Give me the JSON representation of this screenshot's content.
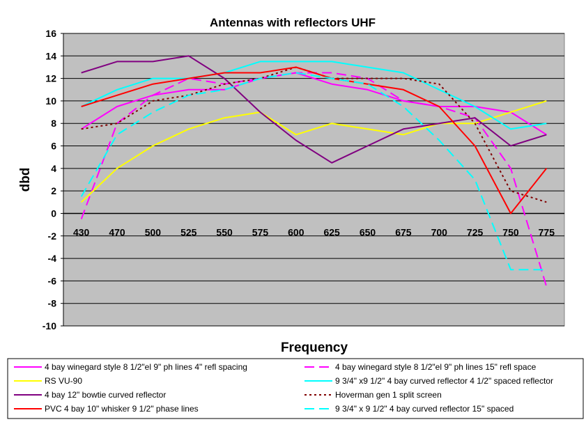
{
  "chart_data": {
    "type": "line",
    "title": "Antennas with reflectors UHF",
    "xlabel": "Frequency",
    "ylabel": "dbd",
    "categories": [
      "430",
      "470",
      "500",
      "525",
      "550",
      "575",
      "600",
      "625",
      "650",
      "675",
      "700",
      "725",
      "750",
      "775"
    ],
    "ylim": [
      -10,
      16
    ],
    "yticks": [
      "16",
      "14",
      "12",
      "10",
      "8",
      "6",
      "4",
      "2",
      "0",
      "-2",
      "-4",
      "-6",
      "-8",
      "-10"
    ],
    "grid": true,
    "legend_position": "bottom",
    "plot_background": "#c0c0c0",
    "series": [
      {
        "name": "4 bay winegard style 8 1/2\"el 9\" ph lines 4\" refl spacing",
        "color": "#ff00ff",
        "dash": "solid",
        "values": [
          7.5,
          9.5,
          10.5,
          11,
          11,
          12,
          12.5,
          11.5,
          11,
          10,
          9.5,
          9.5,
          9,
          7
        ]
      },
      {
        "name": "4 bay winegard style 8 1/2\"el 9\" ph lines 15\" refl space",
        "color": "#ff00ff",
        "dash": "dashed",
        "values": [
          -0.5,
          8,
          10.5,
          12,
          11.5,
          12,
          12.5,
          12.5,
          12,
          10,
          9.5,
          8.5,
          4,
          -6.5
        ]
      },
      {
        "name": "RS VU-90",
        "color": "#ffff00",
        "dash": "solid",
        "values": [
          1,
          4,
          6,
          7.5,
          8.5,
          9,
          7,
          8,
          7.5,
          7,
          8,
          8,
          9,
          10
        ]
      },
      {
        "name": "9 3/4\" x9 1/2\" 4 bay curved reflector 4 1/2\" spaced reflector",
        "color": "#00ffff",
        "dash": "solid",
        "values": [
          9.5,
          11,
          12,
          12,
          12.5,
          13.5,
          13.5,
          13.5,
          13,
          12.5,
          11,
          9.5,
          7.5,
          8
        ]
      },
      {
        "name": "4 bay 12\" bowtie curved reflector",
        "color": "#800080",
        "dash": "solid",
        "values": [
          12.5,
          13.5,
          13.5,
          14,
          12,
          9,
          6.5,
          4.5,
          6,
          7.5,
          8,
          8.5,
          6,
          7
        ]
      },
      {
        "name": "Hoverman gen 1 split screen",
        "color": "#800000",
        "dash": "dotted",
        "values": [
          7.5,
          8,
          10,
          10.5,
          11.5,
          12,
          13,
          12,
          12,
          12,
          11.5,
          8,
          2,
          1
        ]
      },
      {
        "name": "PVC  4 bay 10\" whisker 9 1/2\" phase lines",
        "color": "#ff0000",
        "dash": "solid",
        "values": [
          9.5,
          10.5,
          11.5,
          12,
          12.5,
          12.5,
          13,
          12,
          11.5,
          11,
          9.5,
          6,
          0,
          4
        ]
      },
      {
        "name": "9 3/4\" x 9 1/2\" 4 bay curved reflector 15\" spaced",
        "color": "#00ffff",
        "dash": "dashed",
        "values": [
          1.5,
          7,
          9,
          10.5,
          11,
          12,
          12.5,
          12,
          11.5,
          9.5,
          6.5,
          3,
          -5,
          -5
        ]
      }
    ]
  }
}
